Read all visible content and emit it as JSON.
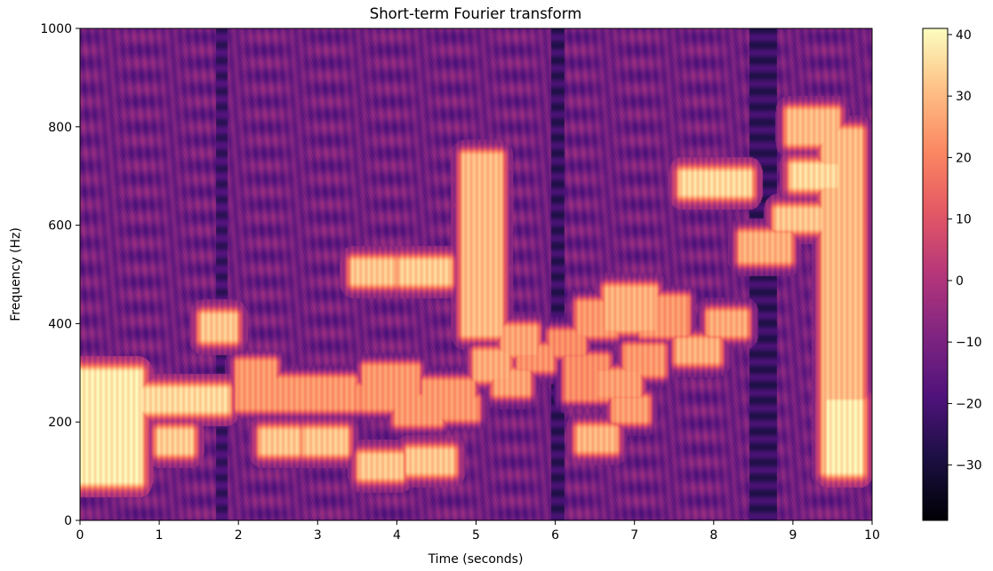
{
  "chart_data": {
    "type": "heatmap",
    "title": "Short-term Fourier transform",
    "xlabel": "Time (seconds)",
    "ylabel": "Frequency (Hz)",
    "xlim": [
      0,
      10
    ],
    "ylim": [
      0,
      1000
    ],
    "xticks": [
      "0",
      "1",
      "2",
      "3",
      "4",
      "5",
      "6",
      "7",
      "8",
      "9",
      "10"
    ],
    "yticks": [
      "0",
      "200",
      "400",
      "600",
      "800",
      "1000"
    ],
    "colorbar": {
      "range": [
        -39,
        41
      ],
      "ticks": [
        "−30",
        "−20",
        "−10",
        "0",
        "10",
        "20",
        "30",
        "40"
      ],
      "colormap": "magma"
    },
    "background_level_db": -12,
    "blobs": [
      {
        "t0": 0.0,
        "t1": 0.75,
        "f0": 80,
        "f1": 300,
        "db": 38
      },
      {
        "t0": 0.65,
        "t1": 1.85,
        "f0": 225,
        "f1": 265,
        "db": 35
      },
      {
        "t0": 1.0,
        "t1": 1.4,
        "f0": 140,
        "f1": 180,
        "db": 33
      },
      {
        "t0": 1.55,
        "t1": 1.95,
        "f0": 370,
        "f1": 415,
        "db": 32
      },
      {
        "t0": 2.0,
        "t1": 2.45,
        "f0": 230,
        "f1": 320,
        "db": 24
      },
      {
        "t0": 2.3,
        "t1": 2.75,
        "f0": 140,
        "f1": 180,
        "db": 32
      },
      {
        "t0": 2.4,
        "t1": 3.45,
        "f0": 230,
        "f1": 285,
        "db": 24
      },
      {
        "t0": 2.85,
        "t1": 3.35,
        "f0": 140,
        "f1": 180,
        "db": 32
      },
      {
        "t0": 3.25,
        "t1": 3.7,
        "f0": 230,
        "f1": 270,
        "db": 22
      },
      {
        "t0": 3.45,
        "t1": 3.95,
        "f0": 485,
        "f1": 525,
        "db": 32
      },
      {
        "t0": 3.55,
        "t1": 4.05,
        "f0": 90,
        "f1": 130,
        "db": 32
      },
      {
        "t0": 3.6,
        "t1": 4.25,
        "f0": 230,
        "f1": 310,
        "db": 24
      },
      {
        "t0": 4.0,
        "t1": 4.55,
        "f0": 200,
        "f1": 250,
        "db": 24
      },
      {
        "t0": 4.05,
        "t1": 4.65,
        "f0": 485,
        "f1": 525,
        "db": 33
      },
      {
        "t0": 4.15,
        "t1": 4.7,
        "f0": 100,
        "f1": 140,
        "db": 32
      },
      {
        "t0": 4.35,
        "t1": 4.95,
        "f0": 240,
        "f1": 280,
        "db": 24
      },
      {
        "t0": 4.55,
        "t1": 5.0,
        "f0": 210,
        "f1": 245,
        "db": 24
      },
      {
        "t0": 4.85,
        "t1": 5.3,
        "f0": 380,
        "f1": 740,
        "db": 30
      },
      {
        "t0": 5.0,
        "t1": 5.4,
        "f0": 290,
        "f1": 340,
        "db": 27
      },
      {
        "t0": 5.25,
        "t1": 5.65,
        "f0": 260,
        "f1": 300,
        "db": 26
      },
      {
        "t0": 5.35,
        "t1": 5.75,
        "f0": 340,
        "f1": 390,
        "db": 26
      },
      {
        "t0": 5.55,
        "t1": 5.95,
        "f0": 310,
        "f1": 350,
        "db": 23
      },
      {
        "t0": 5.95,
        "t1": 6.35,
        "f0": 340,
        "f1": 380,
        "db": 22
      },
      {
        "t0": 6.15,
        "t1": 6.65,
        "f0": 250,
        "f1": 330,
        "db": 22
      },
      {
        "t0": 6.3,
        "t1": 6.75,
        "f0": 145,
        "f1": 185,
        "db": 29
      },
      {
        "t0": 6.3,
        "t1": 6.75,
        "f0": 380,
        "f1": 440,
        "db": 24
      },
      {
        "t0": 6.55,
        "t1": 7.05,
        "f0": 255,
        "f1": 300,
        "db": 25
      },
      {
        "t0": 6.75,
        "t1": 7.15,
        "f0": 205,
        "f1": 245,
        "db": 25
      },
      {
        "t0": 6.65,
        "t1": 7.25,
        "f0": 390,
        "f1": 470,
        "db": 28
      },
      {
        "t0": 6.9,
        "t1": 7.35,
        "f0": 300,
        "f1": 350,
        "db": 24
      },
      {
        "t0": 7.1,
        "t1": 7.65,
        "f0": 380,
        "f1": 450,
        "db": 24
      },
      {
        "t0": 7.55,
        "t1": 8.05,
        "f0": 325,
        "f1": 365,
        "db": 28
      },
      {
        "t0": 7.6,
        "t1": 8.45,
        "f0": 665,
        "f1": 705,
        "db": 35
      },
      {
        "t0": 7.95,
        "t1": 8.4,
        "f0": 380,
        "f1": 420,
        "db": 27
      },
      {
        "t0": 8.35,
        "t1": 8.95,
        "f0": 530,
        "f1": 580,
        "db": 28
      },
      {
        "t0": 8.8,
        "t1": 9.35,
        "f0": 595,
        "f1": 630,
        "db": 32
      },
      {
        "t0": 8.95,
        "t1": 9.55,
        "f0": 770,
        "f1": 830,
        "db": 30
      },
      {
        "t0": 9.0,
        "t1": 9.55,
        "f0": 680,
        "f1": 720,
        "db": 35
      },
      {
        "t0": 9.4,
        "t1": 9.85,
        "f0": 100,
        "f1": 790,
        "db": 30
      },
      {
        "t0": 9.45,
        "t1": 9.85,
        "f0": 100,
        "f1": 240,
        "db": 38
      }
    ]
  }
}
